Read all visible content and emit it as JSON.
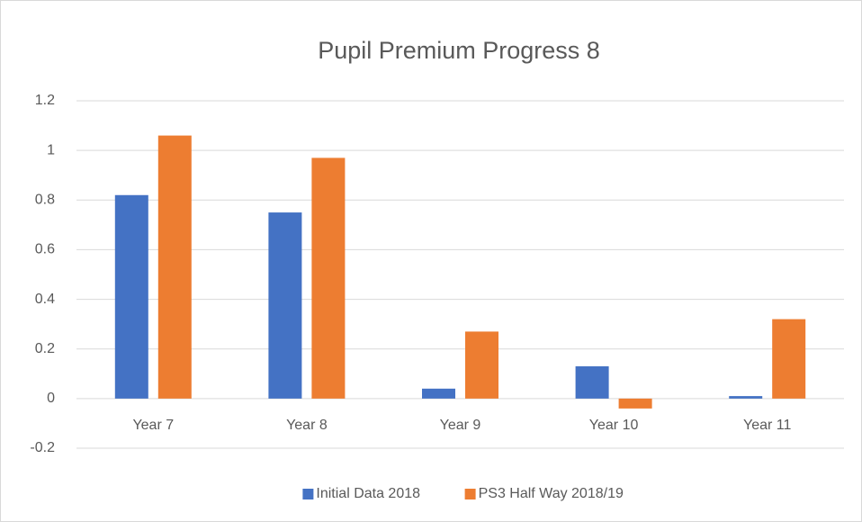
{
  "chart_data": {
    "type": "bar",
    "title": "Pupil Premium Progress 8",
    "categories": [
      "Year 7",
      "Year 8",
      "Year 9",
      "Year 10",
      "Year 11"
    ],
    "series": [
      {
        "name": "Initial Data 2018",
        "color": "#4472c4",
        "values": [
          0.82,
          0.75,
          0.04,
          0.13,
          0.01
        ]
      },
      {
        "name": "PS3 Half Way 2018/19",
        "color": "#ed7d31",
        "values": [
          1.06,
          0.97,
          0.27,
          -0.04,
          0.32
        ]
      }
    ],
    "ylim": [
      -0.2,
      1.2
    ],
    "yticks": [
      -0.2,
      0,
      0.2,
      0.4,
      0.6,
      0.8,
      1,
      1.2
    ],
    "grid": true,
    "legend": "bottom"
  }
}
